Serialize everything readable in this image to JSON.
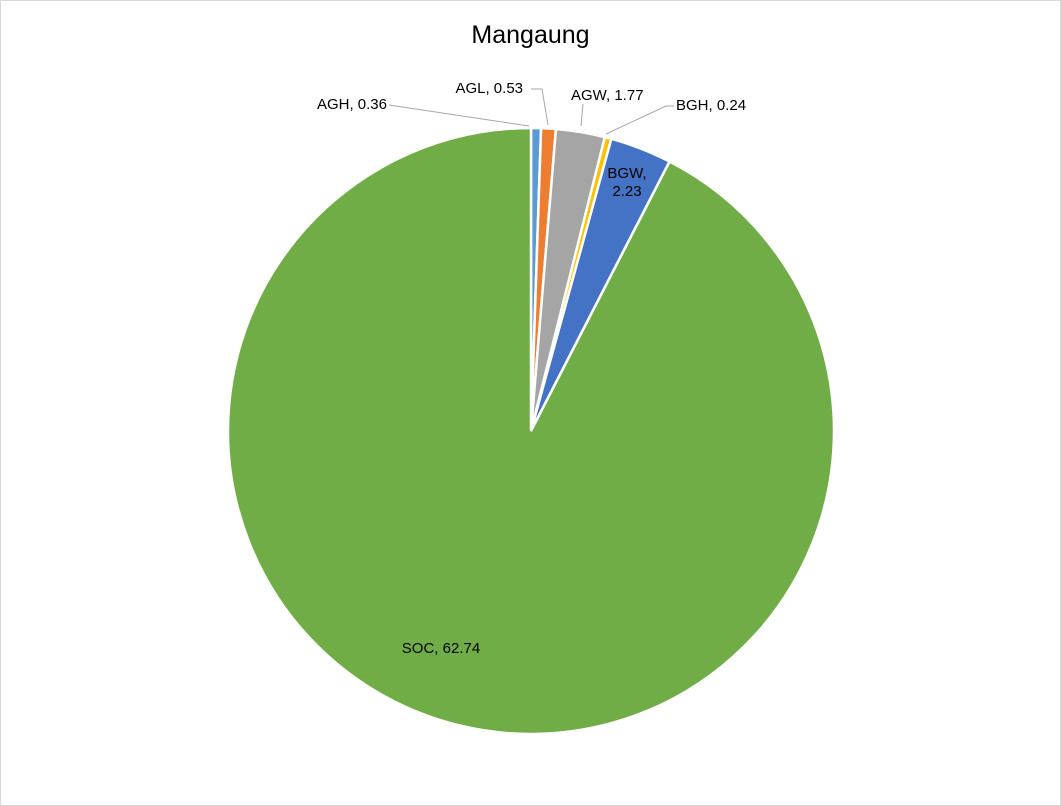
{
  "chart_data": {
    "type": "pie",
    "title": "Mangaung",
    "slices": [
      {
        "label": "AGH",
        "value": 0.36,
        "text": "AGH, 0.36",
        "color": "#5b9bd5"
      },
      {
        "label": "AGL",
        "value": 0.53,
        "text": "AGL, 0.53",
        "color": "#ed7d31"
      },
      {
        "label": "AGW",
        "value": 1.77,
        "text": "AGW, 1.77",
        "color": "#a5a5a5"
      },
      {
        "label": "BGH",
        "value": 0.24,
        "text": "BGH, 0.24",
        "color": "#ffc000"
      },
      {
        "label": "BGW",
        "value": 2.23,
        "text_lines": [
          "BGW,",
          "2.23"
        ],
        "color": "#4472c4"
      },
      {
        "label": "SOC",
        "value": 62.74,
        "text": "SOC, 62.74",
        "color": "#70ad47"
      }
    ],
    "start_angle": "12 o'clock",
    "direction": "clockwise",
    "legend": "none"
  }
}
